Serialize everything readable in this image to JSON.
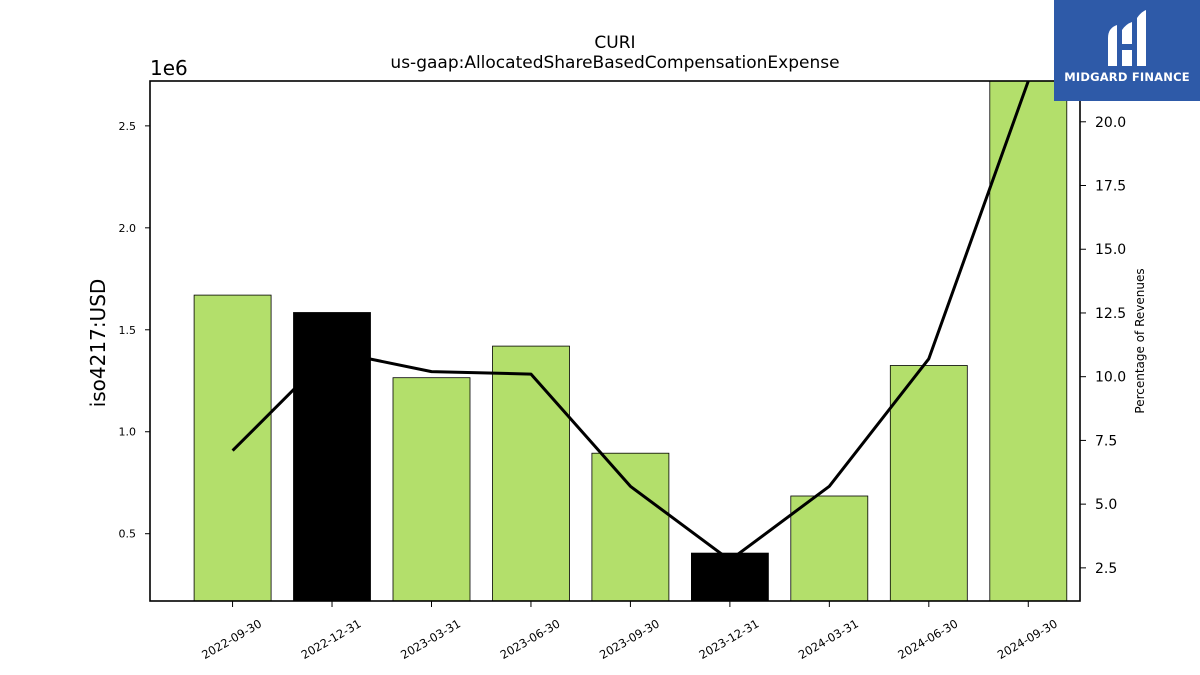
{
  "header": {
    "title": "CURI",
    "subtitle": "us-gaap:AllocatedShareBasedCompensationExpense"
  },
  "brand": {
    "name": "MIDGARD FINANCE",
    "color": "#2e5aa8"
  },
  "chart_data": {
    "type": "bar",
    "title": "CURI",
    "subtitle": "us-gaap:AllocatedShareBasedCompensationExpense",
    "ylabel": "iso4217:USD",
    "y_offset_label": "1e6",
    "y2label": "Percentage of Revenues",
    "categories": [
      "2022-09-30",
      "2022-12-31",
      "2023-03-31",
      "2023-06-30",
      "2023-09-30",
      "2023-12-31",
      "2024-03-31",
      "2024-06-30",
      "2024-09-30"
    ],
    "series": [
      {
        "values": [
          1670000,
          1585000,
          1265000,
          1420000,
          895000,
          405000,
          685000,
          1325000,
          2720000
        ],
        "bar_colors": [
          "#b3df6b",
          "#000000",
          "#b3df6b",
          "#b3df6b",
          "#b3df6b",
          "#000000",
          "#b3df6b",
          "#b3df6b",
          "#b3df6b"
        ]
      },
      {
        "type": "line",
        "axis": "right",
        "values": [
          7.1,
          11.0,
          10.2,
          10.1,
          5.7,
          2.8,
          5.7,
          10.7,
          21.6
        ],
        "color": "#000000"
      }
    ],
    "ylim": [
      170000,
      2720000
    ],
    "yticks": [
      0.5,
      1.0,
      1.5,
      2.0,
      2.5
    ],
    "ytick_labels": [
      "0.5",
      "1.0",
      "1.5",
      "2.0",
      "2.5"
    ],
    "y2lim": [
      1.2,
      21.6
    ],
    "y2ticks": [
      2.5,
      5.0,
      7.5,
      10.0,
      12.5,
      15.0,
      17.5,
      20.0
    ],
    "y2tick_labels": [
      "2.5",
      "5.0",
      "7.5",
      "10.0",
      "12.5",
      "15.0",
      "17.5",
      "20.0"
    ],
    "grid": false,
    "legend": "none"
  }
}
